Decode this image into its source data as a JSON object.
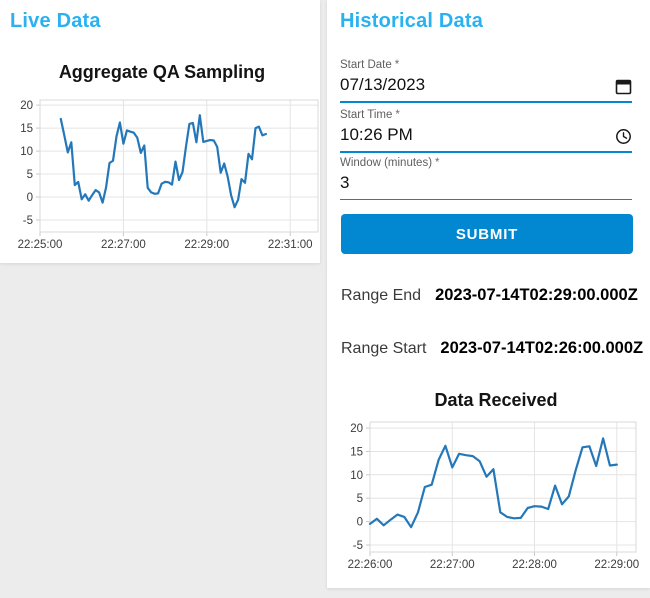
{
  "theme": {
    "page_bg": "#ececec",
    "card_bg": "#ffffff",
    "accent_blue": "#29b1f1",
    "primary_blue": "#0288d1",
    "chart_line_blue": "#2478b9"
  },
  "live_panel": {
    "title": "Live Data"
  },
  "historical_panel": {
    "title": "Historical Data",
    "form": {
      "start_date": {
        "label": "Start Date",
        "required_marker": "*",
        "value": "07/13/2023",
        "icon": "calendar-icon"
      },
      "start_time": {
        "label": "Start Time",
        "required_marker": "*",
        "value": "10:26 PM",
        "icon": "clock-icon"
      },
      "window_minutes": {
        "label": "Window (minutes)",
        "required_marker": "*",
        "value": "3"
      },
      "submit_label": "SUBMIT"
    },
    "results": {
      "range_end": {
        "label": "Range End",
        "value": "2023-07-14T02:29:00.000Z"
      },
      "range_start": {
        "label": "Range Start",
        "value": "2023-07-14T02:26:00.000Z"
      }
    }
  },
  "chart_data": [
    {
      "type": "line",
      "title": "Aggregate QA Sampling",
      "panel": "live",
      "xlabel": "",
      "ylabel": "",
      "grid": true,
      "legend": "none",
      "x_base_time": "22:25:00",
      "x_tick_labels": [
        "22:25:00",
        "22:27:00",
        "22:29:00",
        "22:31:00"
      ],
      "x_tick_seconds": [
        0,
        120,
        240,
        360
      ],
      "x_range_seconds": [
        0,
        400
      ],
      "y_ticks": [
        20,
        15,
        10,
        5,
        0,
        -5
      ],
      "ylim": [
        -7.6,
        21.1
      ],
      "series": [
        {
          "name": "Aggregate QA Sampling",
          "start_second": 30,
          "step_seconds": 5,
          "values": [
            17,
            13.4,
            9.7,
            11.9,
            2.6,
            3.3,
            -0.5,
            0.6,
            -0.8,
            0.4,
            1.5,
            1,
            -1.2,
            2,
            7.4,
            7.9,
            13.2,
            16.2,
            11.6,
            14.5,
            14.2,
            14,
            12.9,
            9.6,
            11.2,
            2,
            1,
            0.7,
            0.8,
            2.9,
            3.3,
            3.2,
            2.7,
            7.7,
            3.7,
            5.4,
            11,
            15.9,
            16.1,
            11.9,
            17.8,
            12,
            12.2,
            12.4,
            12.3,
            10.9,
            5.3,
            7.3,
            4.4,
            0.4,
            -2.2,
            -0.6,
            3.9,
            3.1,
            9.4,
            8.2,
            15,
            15.3,
            13.4,
            13.7
          ]
        }
      ]
    },
    {
      "type": "line",
      "title": "Data Received",
      "panel": "historical",
      "xlabel": "",
      "ylabel": "",
      "grid": true,
      "legend": "none",
      "x_base_time": "22:26:00",
      "x_tick_labels": [
        "22:26:00",
        "22:27:00",
        "22:28:00",
        "22:29:00"
      ],
      "x_tick_seconds": [
        0,
        60,
        120,
        180
      ],
      "x_range_seconds": [
        0,
        194
      ],
      "y_ticks": [
        20,
        15,
        10,
        5,
        0,
        -5
      ],
      "ylim": [
        -6.5,
        21.3
      ],
      "series": [
        {
          "name": "Data Received",
          "start_second": 0,
          "step_seconds": 5,
          "values": [
            -0.5,
            0.6,
            -0.8,
            0.4,
            1.5,
            1,
            -1.2,
            2,
            7.4,
            7.9,
            13.2,
            16.2,
            11.6,
            14.5,
            14.2,
            14,
            12.9,
            9.6,
            11.2,
            2,
            1,
            0.7,
            0.8,
            2.9,
            3.3,
            3.2,
            2.7,
            7.7,
            3.7,
            5.4,
            11,
            15.9,
            16.1,
            11.9,
            17.8,
            12,
            12.2
          ]
        }
      ]
    }
  ]
}
